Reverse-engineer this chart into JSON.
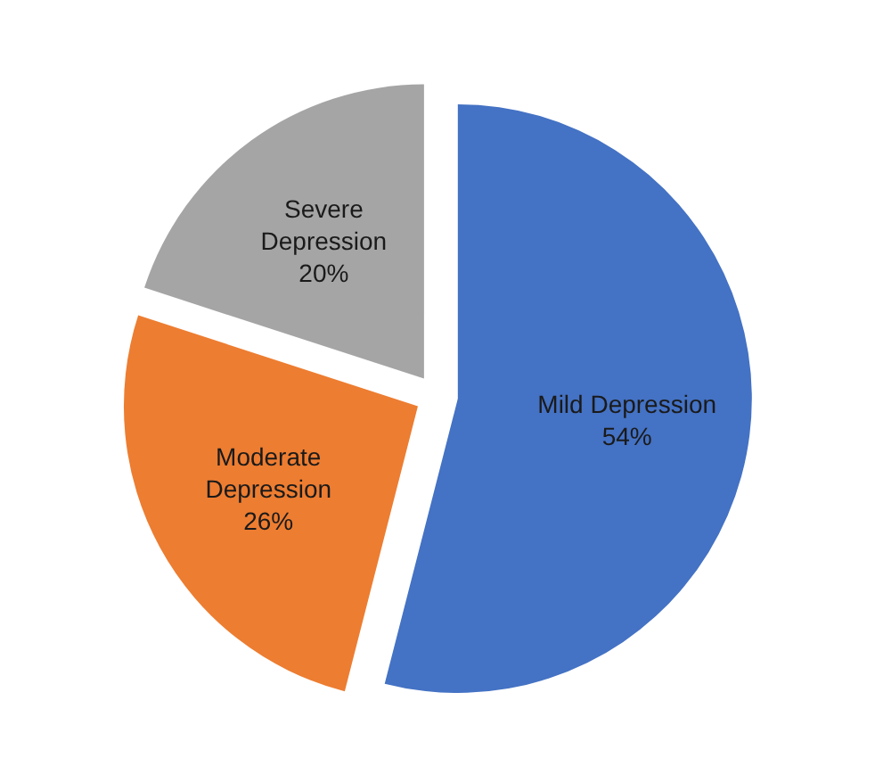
{
  "chart_data": {
    "type": "pie",
    "categories": [
      "Mild Depression",
      "Moderate Depression",
      "Severe Depression"
    ],
    "values": [
      54,
      26,
      20
    ],
    "colors": [
      "#4472c4",
      "#ed7d31",
      "#a5a5a5"
    ],
    "value_labels": [
      "54%",
      "26%",
      "20%"
    ]
  }
}
